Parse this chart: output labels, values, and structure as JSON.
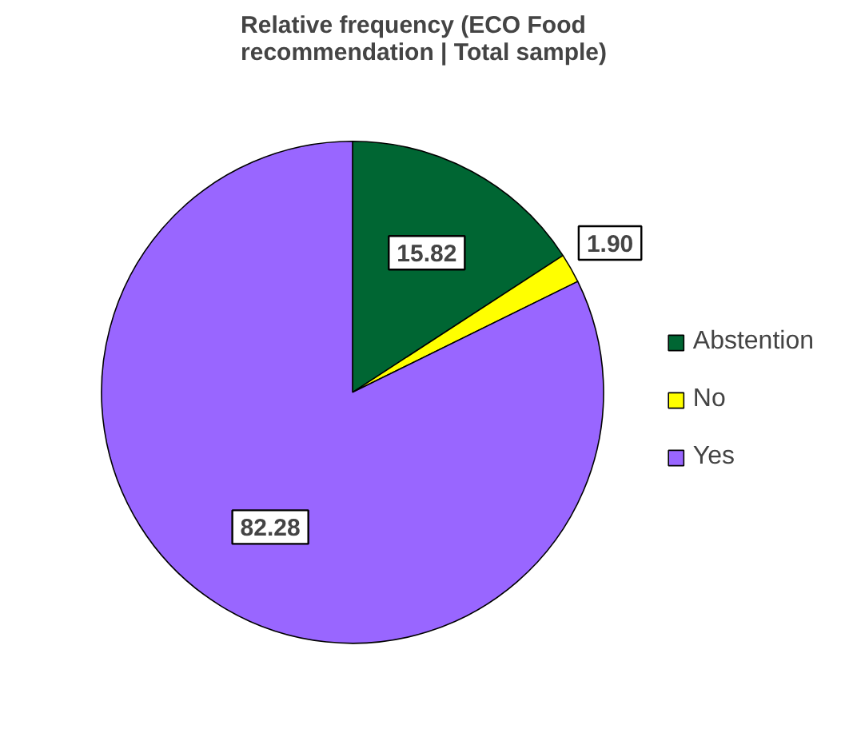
{
  "chart_data": {
    "type": "pie",
    "title": "Relative frequency (ECO Food recommendation | Total sample)",
    "categories": [
      "Abstention",
      "No",
      "Yes"
    ],
    "values": [
      15.82,
      1.9,
      82.28
    ],
    "colors": [
      "#006633",
      "#ffff00",
      "#9966ff"
    ],
    "value_labels": [
      "15.82",
      "1.90",
      "82.28"
    ],
    "legend": "right"
  }
}
